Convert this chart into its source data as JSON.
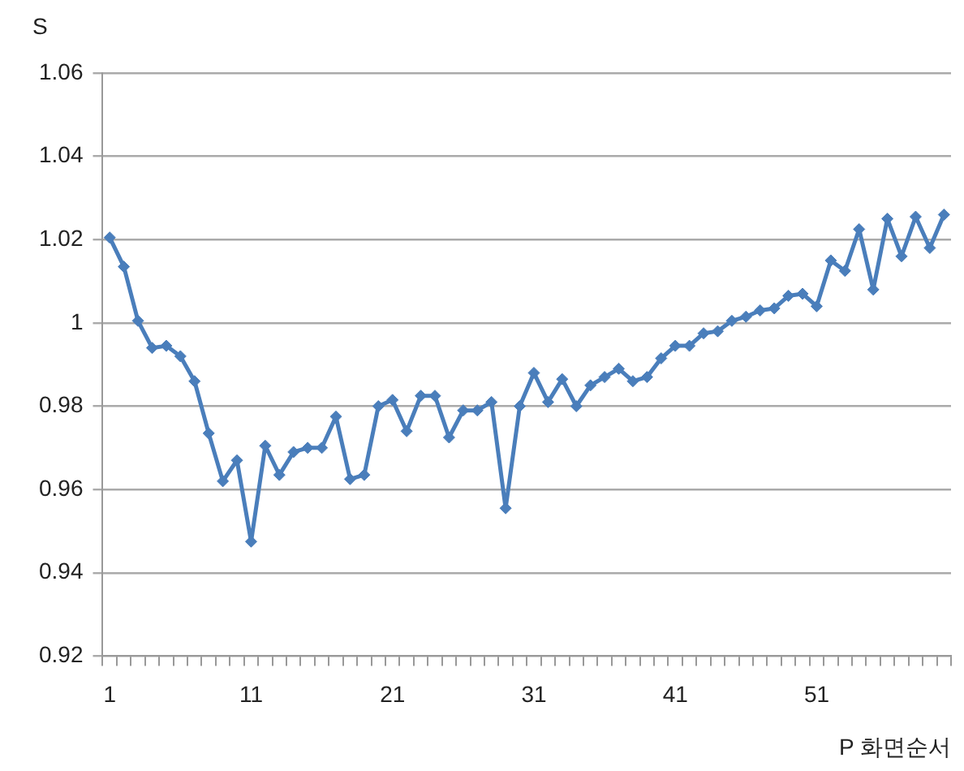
{
  "chart_data": {
    "type": "line",
    "xlabel": "P 화면순서",
    "ylabel": "S",
    "categories": [
      "1",
      null,
      null,
      null,
      null,
      null,
      null,
      null,
      null,
      null,
      "11",
      null,
      null,
      null,
      null,
      null,
      null,
      null,
      null,
      null,
      "21",
      null,
      null,
      null,
      null,
      null,
      null,
      null,
      null,
      null,
      "31",
      null,
      null,
      null,
      null,
      null,
      null,
      null,
      null,
      null,
      "41",
      null,
      null,
      null,
      null,
      null,
      null,
      null,
      null,
      null,
      "51",
      null,
      null,
      null,
      null,
      null,
      null,
      null,
      null,
      null
    ],
    "series": [
      {
        "color": "#4a7ebb",
        "values": [
          1.0205,
          1.0135,
          1.0005,
          0.994,
          0.9945,
          0.992,
          0.986,
          0.9735,
          0.962,
          0.967,
          0.9475,
          0.9705,
          0.9635,
          0.969,
          0.97,
          0.97,
          0.9775,
          0.9625,
          0.9635,
          0.98,
          0.9815,
          0.974,
          0.9825,
          0.9825,
          0.9725,
          0.979,
          0.979,
          0.981,
          0.9555,
          0.98,
          0.988,
          0.981,
          0.9865,
          0.98,
          0.985,
          0.987,
          0.989,
          0.986,
          0.987,
          0.9915,
          0.9945,
          0.9945,
          0.9975,
          0.998,
          1.0005,
          1.0015,
          1.003,
          1.0035,
          1.0065,
          1.007,
          1.004,
          1.015,
          1.0125,
          1.0225,
          1.008,
          1.025,
          1.016,
          1.0255,
          1.018,
          1.026
        ]
      }
    ],
    "ylim": [
      0.92,
      1.06
    ],
    "yticks": [
      0.92,
      0.94,
      0.96,
      0.98,
      1,
      1.02,
      1.04,
      1.06
    ],
    "grid": "y",
    "legend": false,
    "marker": "diamond",
    "line_style": "solid"
  }
}
